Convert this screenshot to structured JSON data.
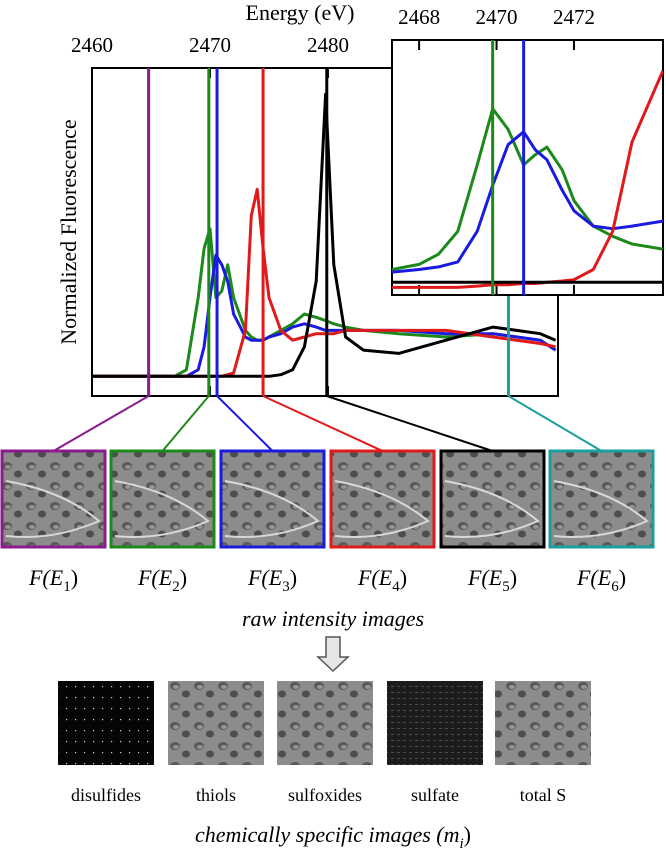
{
  "chart_data": [
    {
      "type": "line",
      "x_label": "Energy (eV)",
      "y_label": "Normalized Fluorescence",
      "xlim": [
        2460,
        2499.5
      ],
      "ylim": [
        0,
        1
      ],
      "xticks": [
        2460,
        2470,
        2480
      ],
      "x": [
        2460,
        2465,
        2467,
        2468,
        2469,
        2469.5,
        2470,
        2470.5,
        2471,
        2471.5,
        2472,
        2473,
        2473.5,
        2474,
        2474.5,
        2475,
        2476,
        2477,
        2478,
        2479,
        2479.8,
        2480.5,
        2481.5,
        2483,
        2486,
        2490,
        2494,
        2498,
        2499.3
      ],
      "series": [
        {
          "color": "#1b8a1b",
          "values": [
            0.06,
            0.06,
            0.06,
            0.08,
            0.3,
            0.45,
            0.51,
            0.3,
            0.32,
            0.4,
            0.3,
            0.2,
            0.18,
            0.17,
            0.17,
            0.18,
            0.2,
            0.22,
            0.25,
            0.24,
            0.23,
            0.22,
            0.21,
            0.2,
            0.19,
            0.18,
            0.19,
            0.17,
            0.14
          ]
        },
        {
          "color": "#1a1ae0",
          "values": [
            0.06,
            0.06,
            0.06,
            0.06,
            0.08,
            0.15,
            0.3,
            0.43,
            0.4,
            0.35,
            0.25,
            0.18,
            0.17,
            0.17,
            0.17,
            0.18,
            0.19,
            0.21,
            0.22,
            0.21,
            0.2,
            0.2,
            0.2,
            0.2,
            0.2,
            0.19,
            0.19,
            0.17,
            0.14
          ]
        },
        {
          "color": "#e01a1a",
          "values": [
            0.06,
            0.06,
            0.06,
            0.06,
            0.06,
            0.06,
            0.06,
            0.06,
            0.06,
            0.065,
            0.07,
            0.2,
            0.55,
            0.63,
            0.45,
            0.3,
            0.2,
            0.17,
            0.18,
            0.19,
            0.19,
            0.19,
            0.2,
            0.2,
            0.2,
            0.2,
            0.18,
            0.16,
            0.15
          ]
        },
        {
          "color": "#000000",
          "values": [
            0.06,
            0.06,
            0.06,
            0.06,
            0.06,
            0.06,
            0.06,
            0.06,
            0.06,
            0.06,
            0.06,
            0.06,
            0.06,
            0.06,
            0.06,
            0.06,
            0.065,
            0.08,
            0.15,
            0.35,
            0.92,
            0.4,
            0.18,
            0.14,
            0.13,
            0.17,
            0.21,
            0.19,
            0.17
          ]
        }
      ],
      "markers": [
        {
          "x": 2464.8,
          "color": "#8b1a8b"
        },
        {
          "x": 2469.9,
          "color": "#1b8a1b"
        },
        {
          "x": 2470.6,
          "color": "#1a1ae0"
        },
        {
          "x": 2474.5,
          "color": "#e01a1a"
        },
        {
          "x": 2479.9,
          "color": "#000000"
        },
        {
          "x": 2495.3,
          "color": "#1a9e9e"
        }
      ]
    },
    {
      "type": "line",
      "xlim": [
        2467.3,
        2474.3
      ],
      "ylim": [
        0,
        1
      ],
      "xticks": [
        2468,
        2470,
        2472
      ],
      "x": [
        2467.3,
        2468,
        2468.5,
        2469,
        2469.5,
        2469.9,
        2470.3,
        2470.7,
        2471,
        2471.3,
        2471.7,
        2472,
        2472.5,
        2473,
        2473.5,
        2474.3
      ],
      "series": [
        {
          "color": "#1b8a1b",
          "values": [
            0.1,
            0.12,
            0.16,
            0.25,
            0.51,
            0.73,
            0.65,
            0.51,
            0.55,
            0.58,
            0.49,
            0.37,
            0.27,
            0.23,
            0.2,
            0.18
          ]
        },
        {
          "color": "#1a1ae0",
          "values": [
            0.09,
            0.1,
            0.11,
            0.13,
            0.25,
            0.43,
            0.59,
            0.64,
            0.57,
            0.53,
            0.41,
            0.33,
            0.27,
            0.26,
            0.27,
            0.29
          ]
        },
        {
          "color": "#e01a1a",
          "values": [
            0.03,
            0.03,
            0.03,
            0.03,
            0.035,
            0.04,
            0.04,
            0.045,
            0.045,
            0.05,
            0.055,
            0.06,
            0.1,
            0.25,
            0.6,
            0.88
          ]
        },
        {
          "color": "#000000",
          "values": [
            0.05,
            0.05,
            0.05,
            0.05,
            0.05,
            0.05,
            0.05,
            0.05,
            0.05,
            0.05,
            0.05,
            0.05,
            0.05,
            0.05,
            0.05,
            0.05
          ]
        }
      ],
      "markers": [
        {
          "x": 2469.9,
          "color": "#1b8a1b"
        },
        {
          "x": 2470.7,
          "color": "#1a1ae0"
        }
      ]
    }
  ],
  "raw_images": {
    "labels": [
      {
        "text": "F(E",
        "sub": "1",
        "close": ")"
      },
      {
        "text": "F(E",
        "sub": "2",
        "close": ")"
      },
      {
        "text": "F(E",
        "sub": "3",
        "close": ")"
      },
      {
        "text": "F(E",
        "sub": "4",
        "close": ")"
      },
      {
        "text": "F(E",
        "sub": "5",
        "close": ")"
      },
      {
        "text": "F(E",
        "sub": "6",
        "close": ")"
      }
    ],
    "caption": "raw intensity images"
  },
  "chemical_images": {
    "labels": [
      "disulfides",
      "thiols",
      "sulfoxides",
      "sulfate",
      "total S"
    ],
    "caption": {
      "text": "chemically specific images (m",
      "sub": "i",
      "close": ")"
    }
  }
}
